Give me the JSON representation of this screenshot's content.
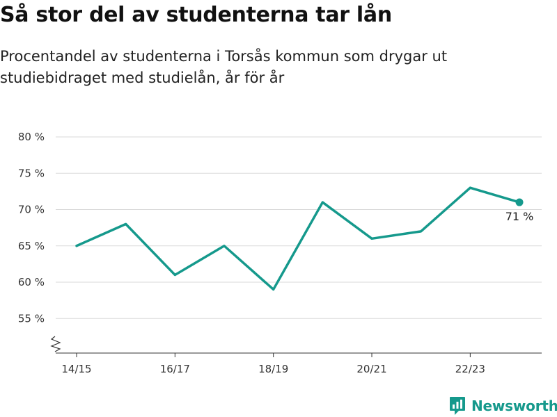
{
  "header": {
    "title": "Så stor del av studenterna tar lån",
    "subtitle": "Procentandel av studenterna i Torsås kommun som drygar ut studiebidraget med studielån, år för år"
  },
  "brand": {
    "name": "Newsworthy",
    "icon": "newsworthy-logo-icon",
    "color": "#15998c"
  },
  "chart_data": {
    "type": "line",
    "title": "Så stor del av studenterna tar lån",
    "subtitle": "Procentandel av studenterna i Torsås kommun som drygar ut studiebidraget med studielån, år för år",
    "x": [
      "14/15",
      "15/16",
      "16/17",
      "17/18",
      "18/19",
      "19/20",
      "20/21",
      "21/22",
      "22/23",
      "23/24"
    ],
    "x_tick_labels": [
      "14/15",
      "16/17",
      "18/19",
      "20/21",
      "22/23"
    ],
    "series": [
      {
        "values": [
          65,
          68,
          61,
          65,
          59,
          71,
          66,
          67,
          73,
          71
        ],
        "color": "#15998c"
      }
    ],
    "y_ticks": [
      55,
      60,
      65,
      70,
      75,
      80
    ],
    "y_tick_labels": [
      "55 %",
      "60 %",
      "65 %",
      "70 %",
      "75 %",
      "80 %"
    ],
    "ylim": [
      50,
      80
    ],
    "y_axis_break": true,
    "grid": "horizontal",
    "last_point_label": "71 %",
    "xlabel": "",
    "ylabel": ""
  }
}
